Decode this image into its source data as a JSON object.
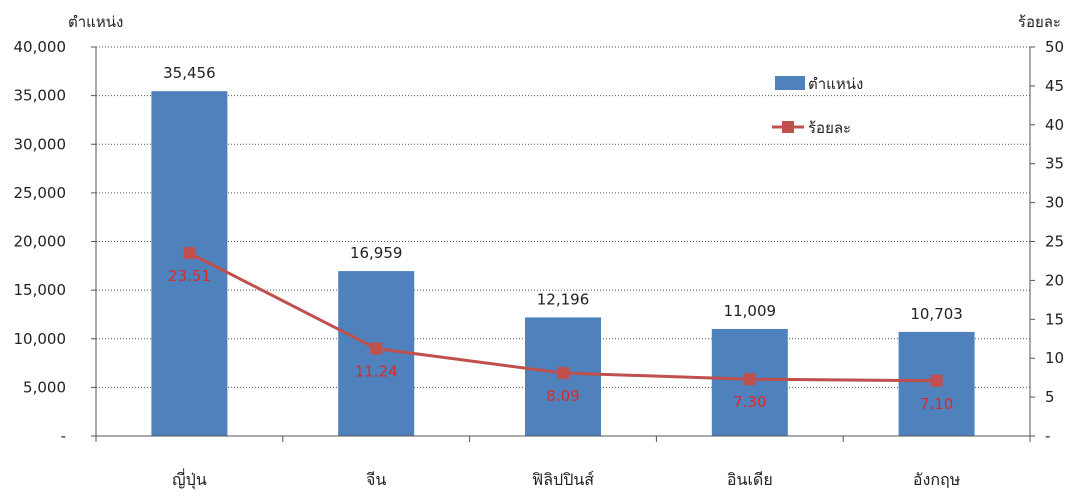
{
  "chart_data": {
    "type": "bar",
    "categories": [
      "ญี่ปุ่น",
      "จีน",
      "ฟิลิปปินส์",
      "อินเดีย",
      "อังกฤษ"
    ],
    "series": [
      {
        "name": "ตำแหน่ง",
        "type": "bar",
        "axis": "left",
        "color": "#4f81bd",
        "values": [
          35456,
          16959,
          12196,
          11009,
          10703
        ],
        "labels": [
          "35,456",
          "16,959",
          "12,196",
          "11,009",
          "10,703"
        ]
      },
      {
        "name": "ร้อยละ",
        "type": "line",
        "axis": "right",
        "color": "#c0504d",
        "values": [
          23.51,
          11.24,
          8.09,
          7.3,
          7.1
        ],
        "labels": [
          "23.51",
          "11.24",
          "8.09",
          "7.30",
          "7.10"
        ]
      }
    ],
    "ylabel": "ตำแหน่ง",
    "y2label": "ร้อยละ",
    "ylim": [
      0,
      40000
    ],
    "y2lim": [
      0,
      50
    ],
    "yticks": [
      "-",
      "5,000",
      "10,000",
      "15,000",
      "20,000",
      "25,000",
      "30,000",
      "35,000",
      "40,000"
    ],
    "y2ticks": [
      "-",
      "5",
      "10",
      "15",
      "20",
      "25",
      "30",
      "35",
      "40",
      "45",
      "50"
    ],
    "grid": true,
    "legend": "top-right",
    "data_label_color": "#d92b2b"
  }
}
